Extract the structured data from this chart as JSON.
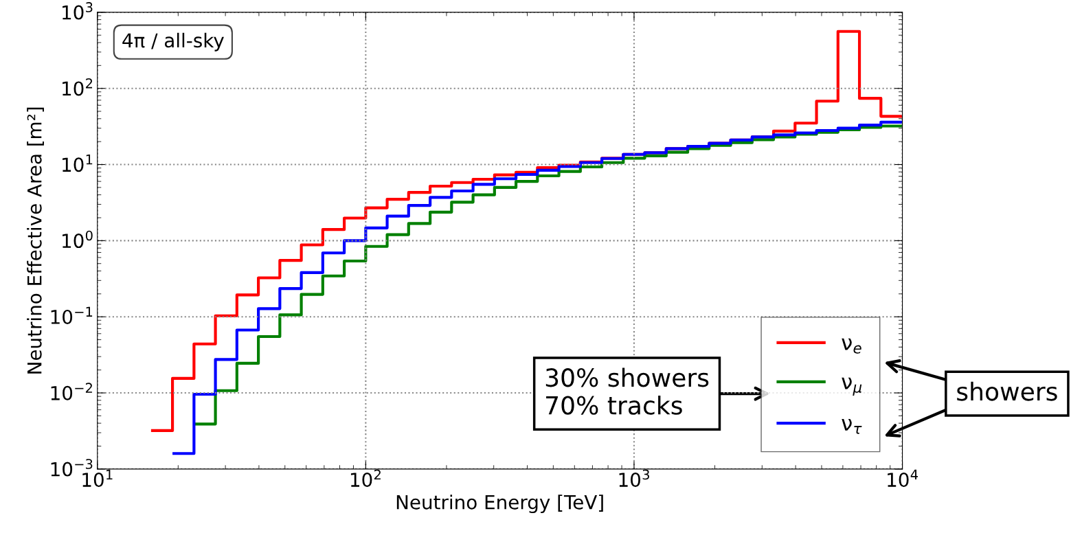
{
  "chart_data": {
    "type": "histogram",
    "xlabel": "Neutrino Energy [TeV]",
    "ylabel": "Neutrino Effective Area [m²]",
    "bins": [
      15.85,
      19.05,
      22.91,
      27.54,
      33.11,
      39.81,
      47.86,
      57.54,
      69.18,
      83.18,
      100,
      120.2,
      144.5,
      173.8,
      208.9,
      251.2,
      302.0,
      363.1,
      436.5,
      524.8,
      631.0,
      758.6,
      912.0,
      1096,
      1318,
      1585,
      1905,
      2291,
      2754,
      3311,
      3981,
      4786,
      5754,
      6918,
      8318,
      10000
    ],
    "series": [
      {
        "name": "ν$_{e}$",
        "color": "#ff0000",
        "values": [
          0.0032,
          0.0155,
          0.044,
          0.103,
          0.194,
          0.325,
          0.55,
          0.88,
          1.4,
          1.98,
          2.7,
          3.5,
          4.3,
          5.2,
          5.8,
          6.4,
          7.3,
          7.9,
          9.1,
          9.8,
          10.8,
          12.1,
          13.6,
          14.3,
          16.2,
          17.3,
          19.0,
          21,
          23,
          27.5,
          35,
          68,
          560,
          74,
          43
        ]
      },
      {
        "name": "ν$_{μ}$",
        "color": "#008000",
        "bins": [
          22.91,
          27.54,
          33.11,
          39.81,
          47.86,
          57.54,
          69.18,
          83.18,
          100,
          120.2,
          144.5,
          173.8,
          208.9,
          251.2,
          302.0,
          363.1,
          436.5,
          524.8,
          631.0,
          758.6,
          912.0,
          1096,
          1318,
          1585,
          1905,
          2291,
          2754,
          3311,
          3981,
          4786,
          5754,
          6918,
          8318,
          10000
        ],
        "values": [
          0.0039,
          0.0107,
          0.0245,
          0.055,
          0.106,
          0.197,
          0.344,
          0.54,
          0.84,
          1.2,
          1.68,
          2.37,
          3.2,
          4.0,
          5.0,
          6.0,
          7.1,
          8.1,
          9.3,
          10.6,
          12.1,
          13.0,
          14.5,
          16.2,
          17.8,
          19.4,
          21.2,
          23,
          25,
          26.5,
          28.6,
          30.7,
          32
        ]
      },
      {
        "name": "ν$_{τ}$",
        "color": "#0000ff",
        "bins": [
          19.05,
          22.91,
          27.54,
          33.11,
          39.81,
          47.86,
          57.54,
          69.18,
          83.18,
          100,
          120.2,
          144.5,
          173.8,
          208.9,
          251.2,
          302.0,
          363.1,
          436.5,
          524.8,
          631.0,
          758.6,
          912.0,
          1096,
          1318,
          1585,
          1905,
          2291,
          2754,
          3311,
          3981,
          4786,
          5754,
          6918,
          8318,
          10000
        ],
        "values": [
          0.0016,
          0.0096,
          0.0275,
          0.067,
          0.128,
          0.235,
          0.38,
          0.69,
          1.0,
          1.47,
          2.1,
          2.9,
          3.7,
          4.5,
          5.5,
          6.5,
          7.4,
          8.4,
          9.4,
          10.6,
          12,
          13.6,
          14.3,
          16.2,
          17.3,
          19.0,
          21,
          23,
          24.5,
          26,
          28,
          30,
          33,
          36
        ]
      }
    ],
    "log": "xy",
    "xlim": [
      10,
      10000
    ],
    "ylim": [
      0.001,
      1000
    ],
    "xticks": [
      {
        "value": 10,
        "label": "10$^{1}$"
      },
      {
        "value": 100,
        "label": "10$^{2}$"
      },
      {
        "value": 1000,
        "label": "10$^{3}$"
      },
      {
        "value": 10000,
        "label": "10$^{4}$"
      }
    ],
    "yticks": [
      {
        "value": 0.001,
        "label": "10$^{−3}$"
      },
      {
        "value": 0.01,
        "label": "10$^{−2}$"
      },
      {
        "value": 0.1,
        "label": "10$^{−1}$"
      },
      {
        "value": 1,
        "label": "10$^{0}$"
      },
      {
        "value": 10,
        "label": "10$^{1}$"
      },
      {
        "value": 100,
        "label": "10$^{2}$"
      },
      {
        "value": 1000,
        "label": "10$^{3}$"
      }
    ],
    "grid": true,
    "legend": "bottom right",
    "line_style": "solid",
    "annotations": [
      "4π / all-sky",
      "30% showers\n70% tracks",
      "showers"
    ]
  }
}
